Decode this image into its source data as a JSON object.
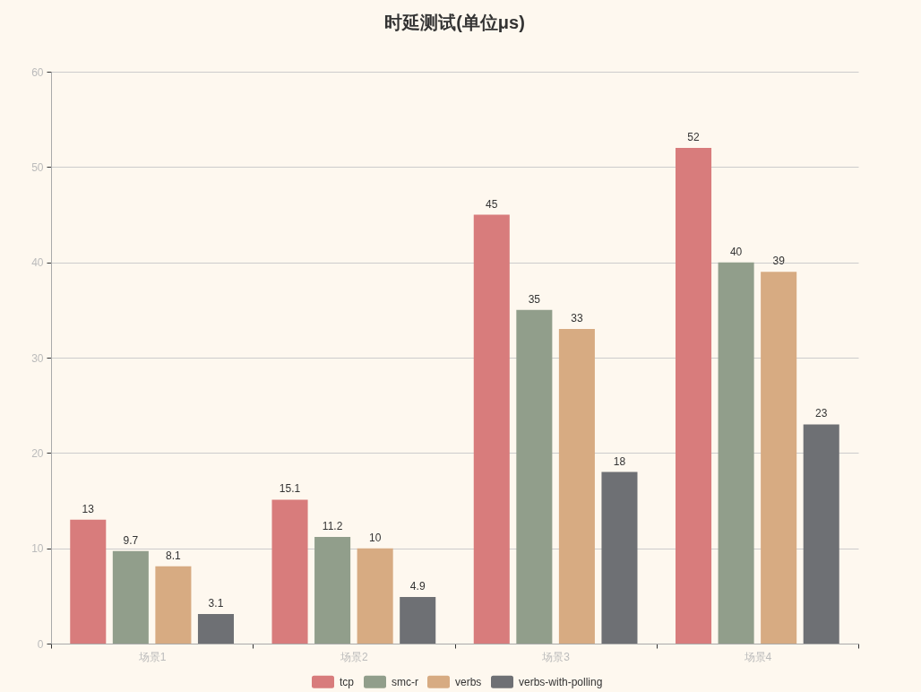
{
  "chart_data": {
    "type": "bar",
    "title": "时延测试(单位μs)",
    "categories": [
      "场景1",
      "场景2",
      "场景3",
      "场景4"
    ],
    "series": [
      {
        "name": "tcp",
        "color": "#d87c7c",
        "values": [
          13,
          15.1,
          45,
          52
        ]
      },
      {
        "name": "smc-r",
        "color": "#919e8b",
        "values": [
          9.7,
          11.2,
          35,
          40
        ]
      },
      {
        "name": "verbs",
        "color": "#d7ab82",
        "values": [
          8.1,
          10,
          33,
          39
        ]
      },
      {
        "name": "verbs-with-polling",
        "color": "#6e7074",
        "values": [
          3.1,
          4.9,
          18,
          23
        ]
      }
    ],
    "ylim": [
      0,
      60
    ],
    "yticks": [
      0,
      10,
      20,
      30,
      40,
      50,
      60
    ],
    "grid": "y",
    "legend": "bottom",
    "data_labels": true
  }
}
